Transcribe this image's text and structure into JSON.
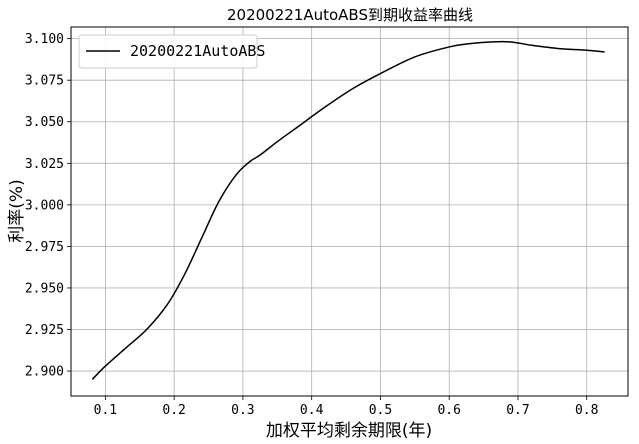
{
  "chart_data": {
    "type": "line",
    "title": "20200221AutoABS到期收益率曲线",
    "xlabel": "加权平均剩余期限(年)",
    "ylabel": "利率(%)",
    "xlim": [
      0.05,
      0.86
    ],
    "ylim": [
      2.885,
      3.107
    ],
    "xticks": [
      0.1,
      0.2,
      0.3,
      0.4,
      0.5,
      0.6,
      0.7,
      0.8
    ],
    "xtick_labels": [
      "0.1",
      "0.2",
      "0.3",
      "0.4",
      "0.5",
      "0.6",
      "0.7",
      "0.8"
    ],
    "yticks": [
      2.9,
      2.925,
      2.95,
      2.975,
      3.0,
      3.025,
      3.05,
      3.075,
      3.1
    ],
    "ytick_labels": [
      "2.900",
      "2.925",
      "2.950",
      "2.975",
      "3.000",
      "3.025",
      "3.050",
      "3.075",
      "3.100"
    ],
    "grid": true,
    "legend": "upper-left",
    "series": [
      {
        "name": "20200221AutoABS",
        "color": "#000000",
        "x": [
          0.081,
          0.1,
          0.13,
          0.16,
          0.19,
          0.215,
          0.24,
          0.265,
          0.29,
          0.31,
          0.325,
          0.35,
          0.38,
          0.42,
          0.46,
          0.5,
          0.55,
          0.6,
          0.63,
          0.66,
          0.69,
          0.72,
          0.76,
          0.8,
          0.826
        ],
        "y": [
          2.895,
          2.903,
          2.914,
          2.925,
          2.94,
          2.958,
          2.98,
          3.002,
          3.018,
          3.026,
          3.03,
          3.038,
          3.047,
          3.059,
          3.07,
          3.079,
          3.089,
          3.095,
          3.097,
          3.098,
          3.098,
          3.096,
          3.094,
          3.093,
          3.092
        ]
      }
    ]
  }
}
